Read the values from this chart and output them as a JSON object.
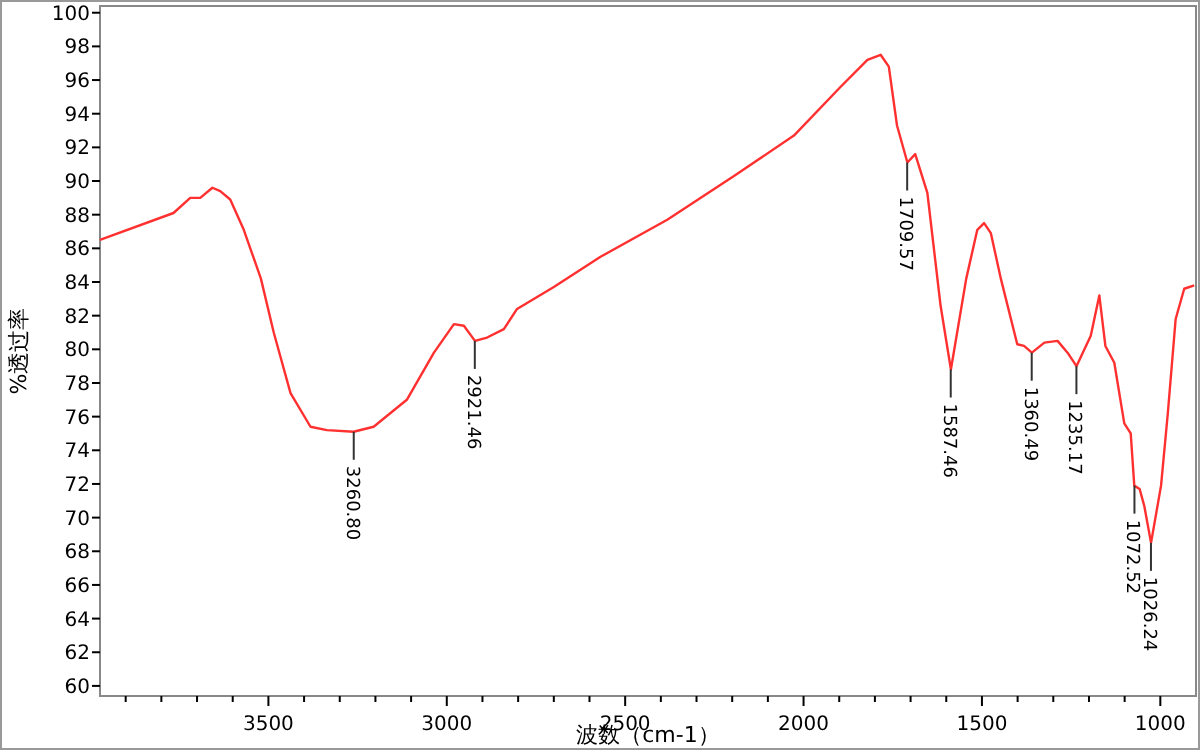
{
  "chart_data": {
    "type": "line",
    "xlabel": "波数（cm-1）",
    "ylabel": "%透过率",
    "xlim": [
      3972,
      900
    ],
    "ylim": [
      59.4,
      100.4
    ],
    "xticks": [
      {
        "value": 3900,
        "label": null
      },
      {
        "value": 3800,
        "label": null
      },
      {
        "value": 3700,
        "label": null
      },
      {
        "value": 3600,
        "label": null
      },
      3500,
      {
        "value": 3400,
        "label": null
      },
      {
        "value": 3300,
        "label": null
      },
      {
        "value": 3200,
        "label": null
      },
      {
        "value": 3100,
        "label": null
      },
      3000,
      {
        "value": 2900,
        "label": null
      },
      {
        "value": 2800,
        "label": null
      },
      {
        "value": 2700,
        "label": null
      },
      {
        "value": 2600,
        "label": null
      },
      2500,
      {
        "value": 2400,
        "label": null
      },
      {
        "value": 2300,
        "label": null
      },
      {
        "value": 2200,
        "label": null
      },
      {
        "value": 2100,
        "label": null
      },
      2000,
      {
        "value": 1900,
        "label": null
      },
      {
        "value": 1800,
        "label": null
      },
      {
        "value": 1700,
        "label": null
      },
      {
        "value": 1600,
        "label": null
      },
      1500,
      {
        "value": 1400,
        "label": null
      },
      {
        "value": 1300,
        "label": null
      },
      {
        "value": 1200,
        "label": null
      },
      {
        "value": 1100,
        "label": null
      },
      1000
    ],
    "yticks": [
      60,
      62,
      64,
      66,
      68,
      70,
      72,
      74,
      76,
      78,
      80,
      82,
      84,
      86,
      88,
      90,
      92,
      94,
      96,
      98,
      100
    ],
    "grid": false,
    "series": [
      {
        "color": "#ff3030",
        "x": [
          3972,
          3766,
          3719,
          3691,
          3657,
          3635,
          3607,
          3569,
          3521,
          3485,
          3438,
          3382,
          3336,
          3261,
          3205,
          3112,
          3036,
          2980,
          2952,
          2921,
          2887,
          2840,
          2803,
          2700,
          2569,
          2382,
          2195,
          2027,
          1896,
          1821,
          1784,
          1761,
          1738,
          1709,
          1687,
          1653,
          1616,
          1587,
          1544,
          1513,
          1494,
          1475,
          1447,
          1401,
          1382,
          1360,
          1325,
          1288,
          1260,
          1235,
          1195,
          1171,
          1154,
          1129,
          1101,
          1083,
          1073,
          1058,
          1045,
          1026,
          998,
          979,
          957,
          933,
          905
        ],
        "values": [
          86.5,
          88.1,
          89.0,
          89.0,
          89.6,
          89.4,
          88.9,
          87.1,
          84.2,
          81.0,
          77.4,
          75.4,
          75.2,
          75.1,
          75.4,
          77.0,
          79.8,
          81.5,
          81.4,
          80.5,
          80.7,
          81.2,
          82.4,
          83.7,
          85.5,
          87.7,
          90.3,
          92.7,
          95.6,
          97.2,
          97.5,
          96.8,
          93.3,
          91.1,
          91.6,
          89.3,
          82.6,
          78.8,
          84.2,
          87.1,
          87.5,
          86.9,
          84.2,
          80.3,
          80.2,
          79.8,
          80.4,
          80.5,
          79.8,
          79.0,
          80.8,
          83.2,
          80.2,
          79.2,
          75.6,
          75.0,
          71.9,
          71.7,
          70.7,
          68.5,
          71.9,
          76.2,
          81.8,
          83.6,
          83.8
        ]
      }
    ],
    "annotations": [
      {
        "text": "3260.80",
        "x": 3260.8,
        "y": 75.1
      },
      {
        "text": "2921.46",
        "x": 2921.46,
        "y": 80.5
      },
      {
        "text": "1709.57",
        "x": 1709.57,
        "y": 91.1
      },
      {
        "text": "1587.46",
        "x": 1587.46,
        "y": 78.8
      },
      {
        "text": "1360.49",
        "x": 1360.49,
        "y": 79.8
      },
      {
        "text": "1235.17",
        "x": 1235.17,
        "y": 79.0
      },
      {
        "text": "1072.52",
        "x": 1072.52,
        "y": 71.9
      },
      {
        "text": "1026.24",
        "x": 1026.24,
        "y": 68.5
      }
    ]
  }
}
